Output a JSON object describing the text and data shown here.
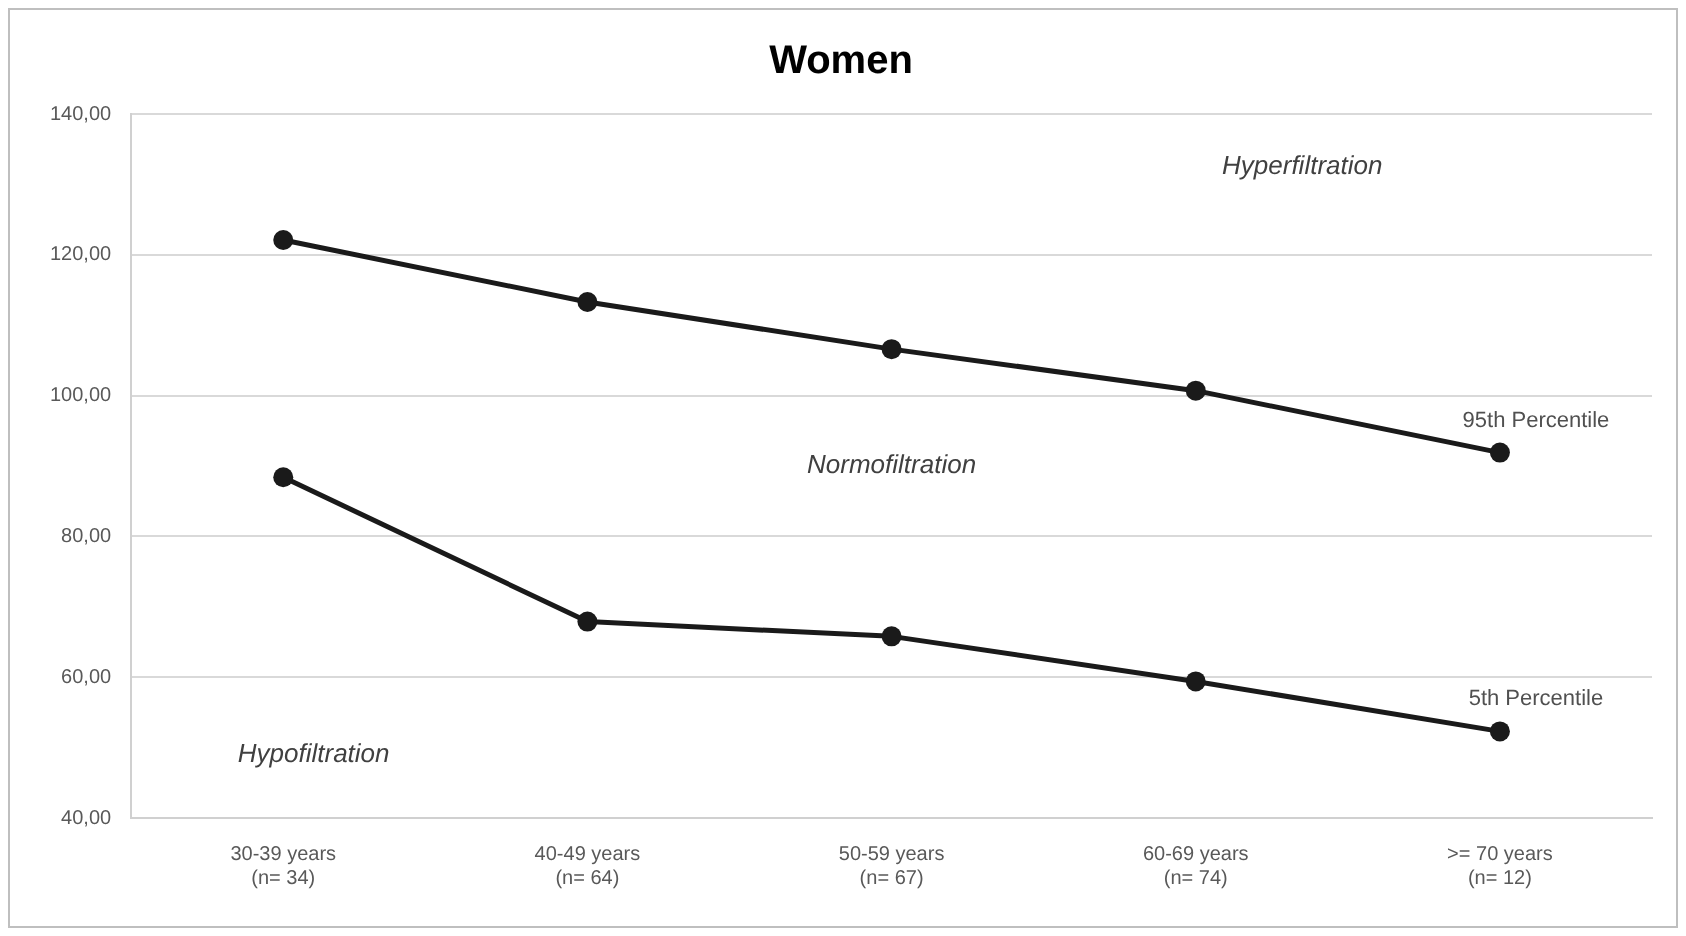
{
  "chart_data": {
    "type": "line",
    "title": "Women",
    "categories": [
      "30-39 years\n(n= 34)",
      "40-49 years\n(n= 64)",
      "50-59 years\n(n= 67)",
      "60-69 years\n(n= 74)",
      ">= 70 years\n(n= 12)"
    ],
    "series": [
      {
        "name": "95th Percentile",
        "color": "#1a1a1a",
        "values": [
          122.1,
          113.3,
          106.6,
          100.7,
          91.9
        ]
      },
      {
        "name": "5th Percentile",
        "color": "#1a1a1a",
        "values": [
          88.4,
          67.9,
          65.8,
          59.4,
          52.3
        ]
      }
    ],
    "ylim": [
      40,
      140
    ],
    "yticks": [
      {
        "value": 40,
        "label": "40,00"
      },
      {
        "value": 60,
        "label": "60,00"
      },
      {
        "value": 80,
        "label": "80,00"
      },
      {
        "value": 100,
        "label": "100,00"
      },
      {
        "value": 120,
        "label": "120,00"
      },
      {
        "value": 140,
        "label": "140,00"
      }
    ],
    "annotations": [
      "Hyperfiltration",
      "Normofiltration",
      "Hypofiltration"
    ],
    "grid": "y",
    "marker": "circle",
    "line_style": "solid"
  }
}
